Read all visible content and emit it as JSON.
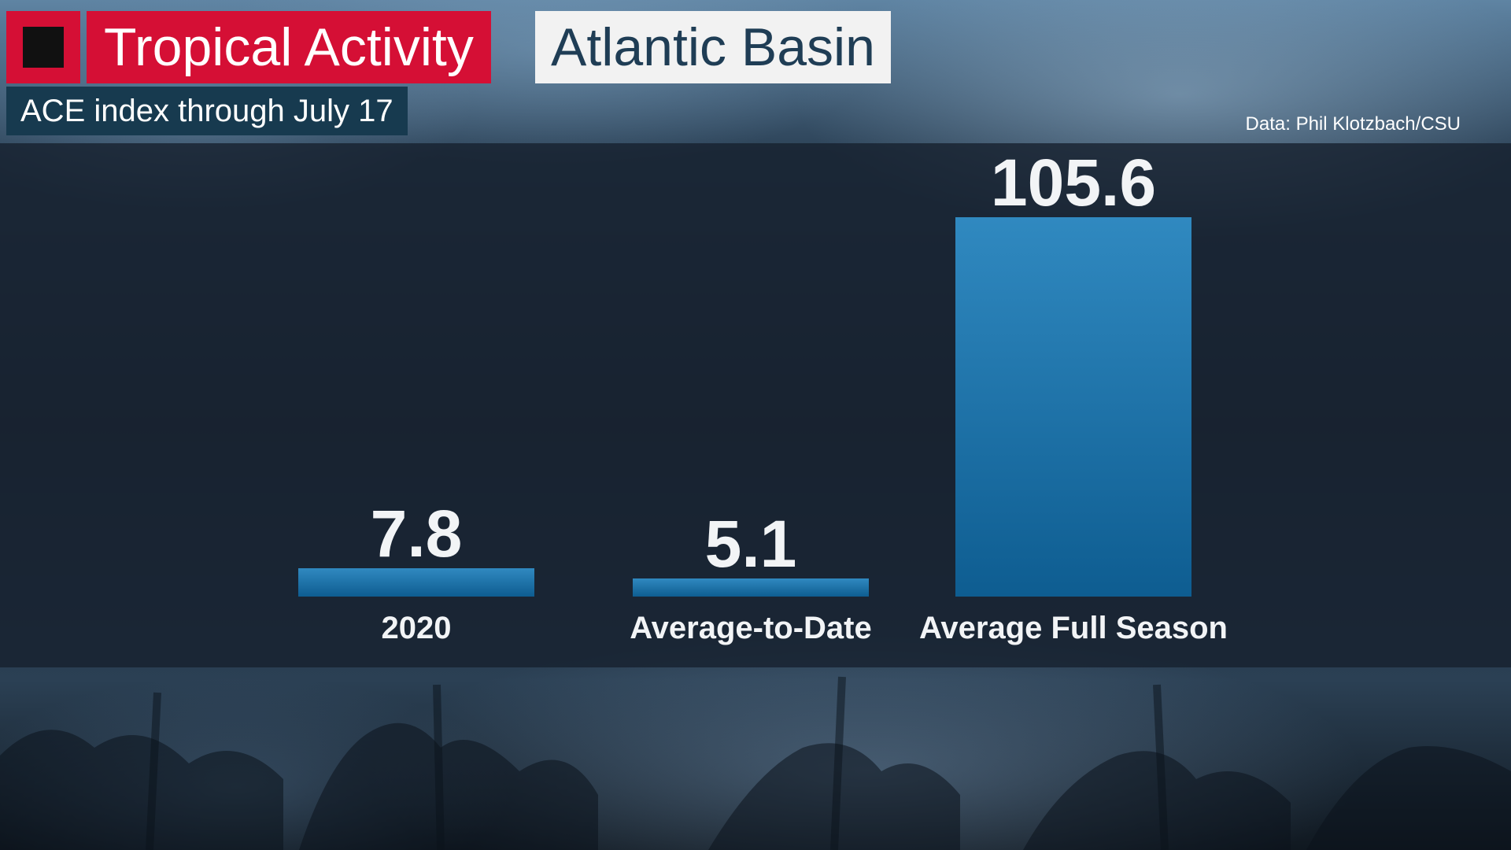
{
  "header": {
    "title": "Tropical Activity",
    "region": "Atlantic Basin",
    "subtitle": "ACE index through July 17",
    "source": "Data: Phil Klotzbach/CSU"
  },
  "colors": {
    "accent_red": "#d50f35",
    "bar_top": "#3089c0",
    "bar_bottom": "#0e5d91",
    "panel": "#16212e"
  },
  "chart_data": {
    "type": "bar",
    "categories": [
      "2020",
      "Average-to-Date",
      "Average Full Season"
    ],
    "values": [
      7.8,
      5.1,
      105.6
    ],
    "value_labels": [
      "7.8",
      "5.1",
      "105.6"
    ],
    "title": "",
    "xlabel": "",
    "ylabel": "",
    "ylim": [
      0,
      105.6
    ],
    "grid": false,
    "legend": "none"
  }
}
